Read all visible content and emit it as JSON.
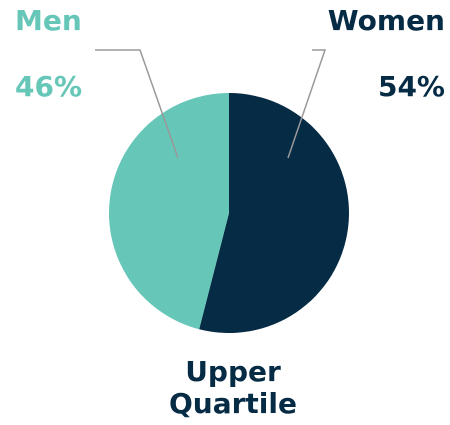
{
  "chart_data": {
    "type": "pie",
    "title": "Upper Quartile",
    "categories": [
      "Women",
      "Men"
    ],
    "values": [
      54,
      46
    ],
    "value_labels": [
      "54%",
      "46%"
    ],
    "colors": [
      "#062b45",
      "#66c6b8"
    ]
  }
}
